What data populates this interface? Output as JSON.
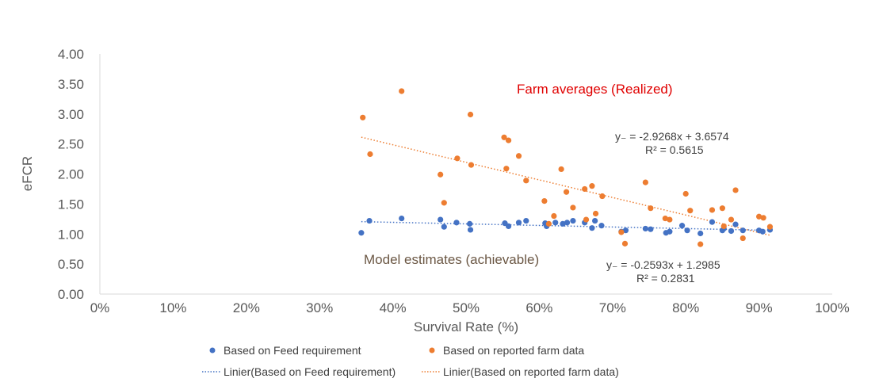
{
  "chart_data": {
    "type": "scatter",
    "xlabel": "Survival Rate (%)",
    "ylabel": "eFCR",
    "xlim": [
      0,
      1
    ],
    "ylim": [
      0,
      4
    ],
    "x_ticks": [
      "0%",
      "10%",
      "20%",
      "30%",
      "40%",
      "50%",
      "60%",
      "70%",
      "80%",
      "90%",
      "100%"
    ],
    "y_ticks": [
      "0.00",
      "0.50",
      "1.00",
      "1.50",
      "2.00",
      "2.50",
      "3.00",
      "3.50",
      "4.00"
    ],
    "series": [
      {
        "name": "Based on Feed requirement",
        "color": "#4472c4",
        "points": [
          [
            0.357,
            1.02
          ],
          [
            0.368,
            1.22
          ],
          [
            0.412,
            1.26
          ],
          [
            0.465,
            1.24
          ],
          [
            0.47,
            1.12
          ],
          [
            0.487,
            1.19
          ],
          [
            0.505,
            1.17
          ],
          [
            0.506,
            1.07
          ],
          [
            0.553,
            1.18
          ],
          [
            0.558,
            1.13
          ],
          [
            0.572,
            1.19
          ],
          [
            0.582,
            1.22
          ],
          [
            0.608,
            1.18
          ],
          [
            0.61,
            1.13
          ],
          [
            0.622,
            1.19
          ],
          [
            0.632,
            1.17
          ],
          [
            0.638,
            1.19
          ],
          [
            0.646,
            1.22
          ],
          [
            0.662,
            1.19
          ],
          [
            0.672,
            1.1
          ],
          [
            0.676,
            1.22
          ],
          [
            0.685,
            1.14
          ],
          [
            0.712,
            1.04
          ],
          [
            0.718,
            1.06
          ],
          [
            0.745,
            1.09
          ],
          [
            0.752,
            1.08
          ],
          [
            0.773,
            1.02
          ],
          [
            0.778,
            1.04
          ],
          [
            0.795,
            1.14
          ],
          [
            0.802,
            1.06
          ],
          [
            0.82,
            1.01
          ],
          [
            0.836,
            1.2
          ],
          [
            0.85,
            1.06
          ],
          [
            0.852,
            1.09
          ],
          [
            0.862,
            1.05
          ],
          [
            0.868,
            1.16
          ],
          [
            0.878,
            1.06
          ],
          [
            0.9,
            1.06
          ],
          [
            0.905,
            1.04
          ],
          [
            0.915,
            1.07
          ]
        ]
      },
      {
        "name": "Based on reported farm data",
        "color": "#ed7d31",
        "points": [
          [
            0.359,
            2.94
          ],
          [
            0.369,
            2.33
          ],
          [
            0.412,
            3.38
          ],
          [
            0.465,
            1.99
          ],
          [
            0.47,
            1.52
          ],
          [
            0.488,
            2.26
          ],
          [
            0.506,
            2.99
          ],
          [
            0.507,
            2.15
          ],
          [
            0.552,
            2.61
          ],
          [
            0.555,
            2.09
          ],
          [
            0.558,
            2.56
          ],
          [
            0.572,
            2.3
          ],
          [
            0.582,
            1.89
          ],
          [
            0.607,
            1.55
          ],
          [
            0.613,
            1.17
          ],
          [
            0.62,
            1.3
          ],
          [
            0.63,
            2.08
          ],
          [
            0.637,
            1.7
          ],
          [
            0.646,
            1.44
          ],
          [
            0.662,
            1.75
          ],
          [
            0.664,
            1.24
          ],
          [
            0.672,
            1.8
          ],
          [
            0.677,
            1.34
          ],
          [
            0.686,
            1.63
          ],
          [
            0.712,
            1.03
          ],
          [
            0.717,
            0.84
          ],
          [
            0.745,
            1.86
          ],
          [
            0.752,
            1.43
          ],
          [
            0.772,
            1.26
          ],
          [
            0.778,
            1.24
          ],
          [
            0.8,
            1.67
          ],
          [
            0.806,
            1.39
          ],
          [
            0.82,
            0.83
          ],
          [
            0.836,
            1.4
          ],
          [
            0.85,
            1.43
          ],
          [
            0.852,
            1.13
          ],
          [
            0.862,
            1.24
          ],
          [
            0.868,
            1.73
          ],
          [
            0.878,
            0.93
          ],
          [
            0.9,
            1.29
          ],
          [
            0.906,
            1.27
          ],
          [
            0.915,
            1.12
          ]
        ]
      }
    ],
    "trendlines": [
      {
        "name": "Linier(Based on Feed requirement)",
        "color": "#4472c4",
        "slope": -0.2593,
        "intercept": 1.2985,
        "x_range": [
          0.357,
          0.915
        ]
      },
      {
        "name": "Linier(Based on reported farm data)",
        "color": "#ed7d31",
        "slope": -2.9268,
        "intercept": 3.6574,
        "x_range": [
          0.357,
          0.915
        ]
      }
    ],
    "equations": [
      {
        "line1": "y₋ = -2.9268x + 3.6574",
        "line2": "R² = 0.5615"
      },
      {
        "line1": "y₋ = -0.2593x + 1.2985",
        "line2": "R² = 0.2831"
      }
    ],
    "annotations": {
      "realized": "Farm averages (Realized)",
      "achievable": "Model estimates (achievable)"
    },
    "grid": false,
    "legend_position": "bottom"
  }
}
